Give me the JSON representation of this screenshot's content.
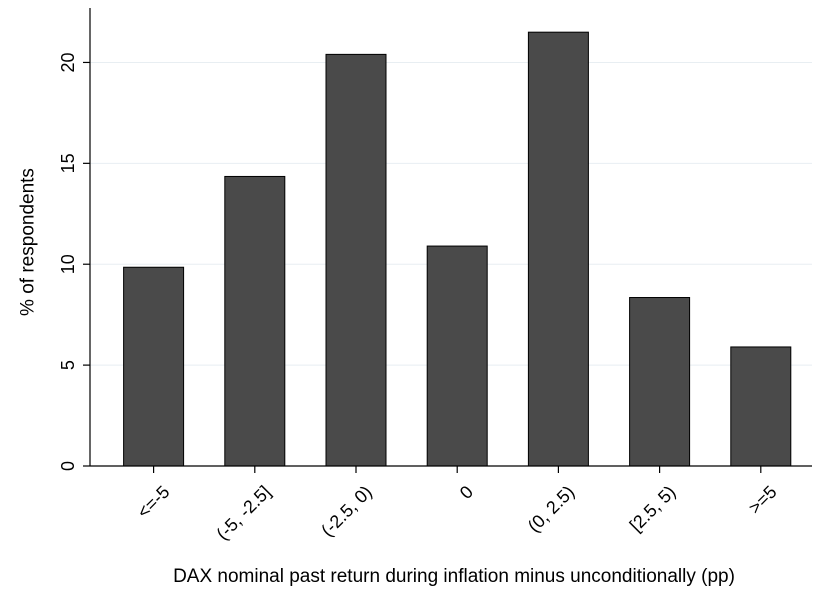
{
  "chart_data": {
    "type": "bar",
    "categories": [
      "<=-5",
      "(-5, -2.5]",
      "(-2.5, 0)",
      "0",
      "(0, 2.5)",
      "[2.5, 5)",
      ">=5"
    ],
    "values": [
      9.85,
      14.35,
      20.4,
      10.9,
      21.5,
      8.35,
      5.9
    ],
    "title": "",
    "xlabel": "DAX nominal past return during inflation minus unconditionally (pp)",
    "ylabel": "% of respondents",
    "ylim": [
      0,
      22.5
    ],
    "yticks": [
      0,
      5,
      10,
      15,
      20
    ],
    "grid": true,
    "bar_color": "#4a4a4a",
    "grid_color": "#e8eef2"
  }
}
